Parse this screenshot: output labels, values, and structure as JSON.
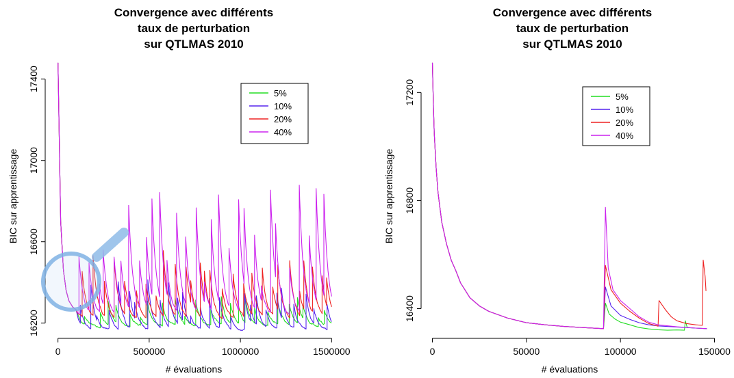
{
  "chart_data": [
    {
      "type": "line",
      "title_lines": [
        "Convergence avec différents",
        "taux de perturbation",
        "sur QTLMAS 2010"
      ],
      "xlabel": "# évaluations",
      "ylabel": "BIC sur apprentissage",
      "xlim": [
        -70000,
        1570000
      ],
      "ylim": [
        16125,
        17520
      ],
      "x_ticks": [
        0,
        500000,
        1000000,
        1500000
      ],
      "x_tick_labels": [
        "0",
        "500000",
        "1000000",
        "1500000"
      ],
      "y_ticks": [
        16200,
        16600,
        17000,
        17400
      ],
      "y_tick_labels": [
        "16200",
        "16600",
        "17000",
        "17400"
      ],
      "legend_position": "top-right",
      "grid": false,
      "x_max_data": 1500000,
      "has_magnifier": true,
      "series": [
        {
          "name": "5%",
          "color": "#22dd22",
          "base": 16185,
          "spike_min": 40,
          "spike_max": 150,
          "interval": 55000,
          "offset": 30000,
          "seed": 5
        },
        {
          "name": "10%",
          "color": "#5522ee",
          "base": 16165,
          "spike_min": 60,
          "spike_max": 250,
          "interval": 50000,
          "offset": 10000,
          "seed": 10
        },
        {
          "name": "20%",
          "color": "#ee2222",
          "base": 16215,
          "spike_min": 90,
          "spike_max": 350,
          "interval": 42000,
          "offset": 20000,
          "seed": 20
        },
        {
          "name": "40%",
          "color": "#cc22ee",
          "base": 16230,
          "spike_min": 150,
          "spike_max": 660,
          "interval": 38000,
          "offset": 5000,
          "seed": 40
        }
      ],
      "shared_descent": {
        "x": [
          0,
          15000,
          30000,
          45000,
          60000,
          80000,
          100000
        ],
        "y": [
          17480,
          16700,
          16460,
          16360,
          16310,
          16280,
          16265
        ]
      }
    },
    {
      "type": "line",
      "title_lines": [
        "Convergence avec différents",
        "taux de perturbation",
        "sur QTLMAS 2010"
      ],
      "xlabel": "# évaluations",
      "ylabel": "BIC sur apprentissage",
      "xlim": [
        -6000,
        152000
      ],
      "ylim": [
        16290,
        17340
      ],
      "x_ticks": [
        0,
        50000,
        100000,
        150000
      ],
      "x_tick_labels": [
        "0",
        "50000",
        "100000",
        "150000"
      ],
      "y_ticks": [
        16400,
        16800,
        17200
      ],
      "y_tick_labels": [
        "16400",
        "16800",
        "17200"
      ],
      "legend_position": "top-right",
      "grid": false,
      "shared_descent": {
        "x": [
          0,
          500,
          1000,
          2000,
          3000,
          5000,
          7500,
          10000,
          12500,
          15000,
          20000,
          25000,
          30000,
          40000,
          50000,
          60000,
          70000,
          80000,
          91000
        ],
        "y": [
          17310,
          17160,
          17050,
          16920,
          16830,
          16720,
          16640,
          16580,
          16540,
          16495,
          16440,
          16410,
          16390,
          16365,
          16348,
          16340,
          16334,
          16330,
          16326
        ]
      },
      "series": [
        {
          "name": "5%",
          "color": "#22dd22",
          "x": [
            91000,
            92000,
            94000,
            97000,
            100000,
            105000,
            110000,
            115000,
            120000,
            125000,
            130000,
            134000,
            134500,
            135500,
            140000,
            146000
          ],
          "y": [
            16326,
            16420,
            16380,
            16362,
            16350,
            16340,
            16330,
            16325,
            16322,
            16320,
            16321,
            16320,
            16355,
            16330,
            16328,
            16326
          ]
        },
        {
          "name": "10%",
          "color": "#5522ee",
          "x": [
            91000,
            92000,
            95000,
            100000,
            105000,
            110000,
            115000,
            120000,
            130000,
            140000,
            146000
          ],
          "y": [
            16326,
            16480,
            16410,
            16375,
            16360,
            16348,
            16340,
            16336,
            16332,
            16328,
            16326
          ]
        },
        {
          "name": "20%",
          "color": "#ee2222",
          "x": [
            91000,
            92000,
            95000,
            100000,
            105000,
            110000,
            115000,
            120000,
            120500,
            124000,
            127000,
            130000,
            135000,
            140000,
            143500,
            144000,
            145000,
            145500
          ],
          "y": [
            16326,
            16560,
            16470,
            16420,
            16390,
            16365,
            16345,
            16335,
            16430,
            16395,
            16370,
            16355,
            16345,
            16340,
            16338,
            16580,
            16520,
            16465
          ]
        },
        {
          "name": "40%",
          "color": "#cc22ee",
          "x": [
            91000,
            92000,
            93500,
            96000,
            100000,
            105000,
            110000,
            115000,
            120000,
            130000,
            140000,
            146000
          ],
          "y": [
            16326,
            16775,
            16550,
            16470,
            16430,
            16400,
            16370,
            16350,
            16340,
            16333,
            16328,
            16326
          ]
        }
      ]
    }
  ]
}
